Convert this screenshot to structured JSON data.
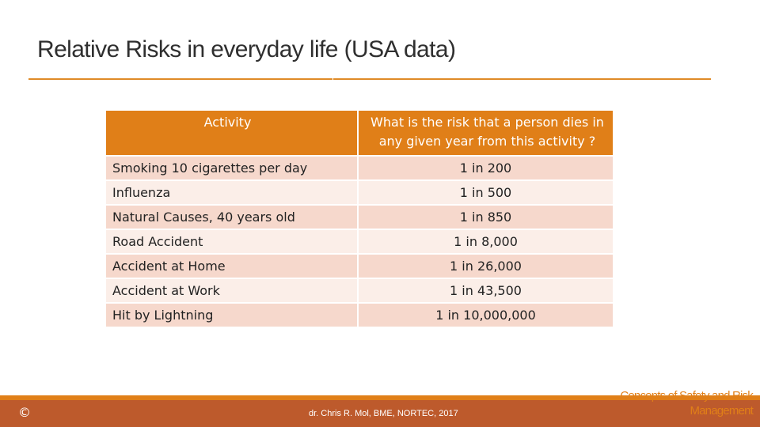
{
  "slide": {
    "title": "Relative Risks in everyday life (USA data)"
  },
  "table": {
    "headers": {
      "activity": "Activity",
      "risk": "What is the risk that a person dies in any given year from this activity ?"
    },
    "rows": [
      {
        "activity": "Smoking 10 cigarettes per day",
        "risk": "1 in 200"
      },
      {
        "activity": "Influenza",
        "risk": "1 in 500"
      },
      {
        "activity": "Natural Causes, 40 years old",
        "risk": "1 in 850"
      },
      {
        "activity": "Road Accident",
        "risk": "1 in 8,000"
      },
      {
        "activity": "Accident at Home",
        "risk": "1 in 26,000"
      },
      {
        "activity": "Accident at Work",
        "risk": "1 in 43,500"
      },
      {
        "activity": "Hit by Lightning",
        "risk": "1 in 10,000,000"
      }
    ]
  },
  "footer": {
    "copyright": "©",
    "author": "dr. Chris R. Mol, BME, NORTEC, 2017",
    "course_line1": "Concepts of Safety and Risk",
    "course_line2": "Management"
  },
  "colors": {
    "accent": "#e07f18",
    "footer_band": "#bd5a2c",
    "row_odd": "#f6d8cc",
    "row_even": "#fbeee8",
    "title_text": "#2f2f2f"
  }
}
